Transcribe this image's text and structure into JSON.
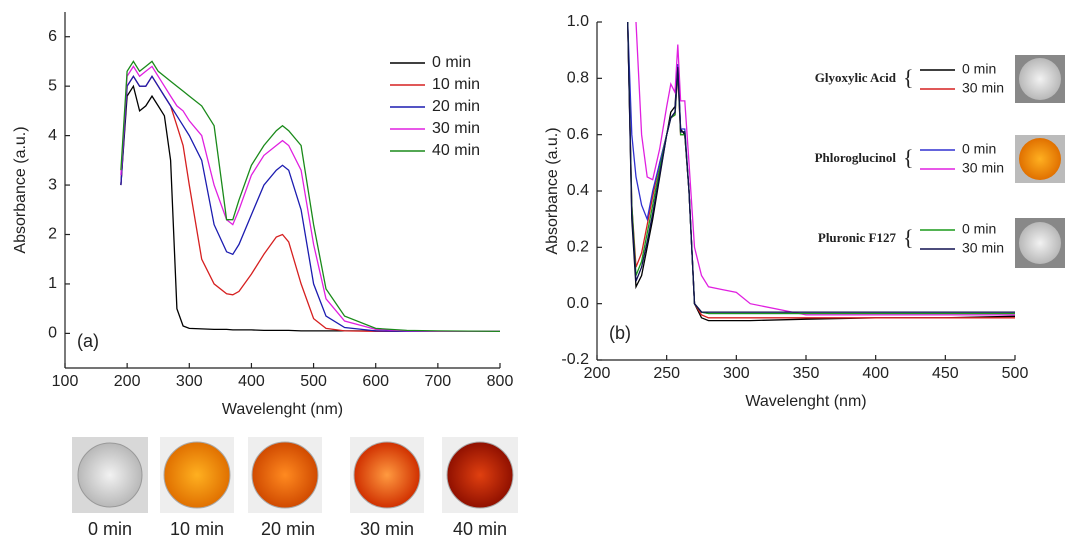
{
  "chart_data": [
    {
      "type": "line",
      "annotation": "(a)",
      "x_label": "Wavelenght (nm)",
      "y_label": "Absorbance (a.u.)",
      "xlim": [
        100,
        800
      ],
      "xticks": [
        100,
        200,
        300,
        400,
        500,
        600,
        700,
        800
      ],
      "ylim": [
        -0.7,
        6.5
      ],
      "yticks": [
        0,
        1,
        2,
        3,
        4,
        5,
        6
      ],
      "legend": "upper right",
      "x": [
        190,
        200,
        210,
        220,
        230,
        240,
        250,
        260,
        270,
        280,
        290,
        300,
        320,
        340,
        360,
        370,
        380,
        400,
        420,
        440,
        450,
        460,
        480,
        500,
        520,
        550,
        600,
        650,
        700,
        800
      ],
      "series": [
        {
          "name": "0 min",
          "color": "#000000",
          "values": [
            3.0,
            4.8,
            5.0,
            4.5,
            4.6,
            4.8,
            4.6,
            4.4,
            3.5,
            0.5,
            0.15,
            0.1,
            0.09,
            0.08,
            0.08,
            0.07,
            0.07,
            0.07,
            0.06,
            0.06,
            0.06,
            0.06,
            0.05,
            0.05,
            0.05,
            0.05,
            0.05,
            0.04,
            0.04,
            0.04
          ]
        },
        {
          "name": "10 min",
          "color": "#d62020",
          "values": [
            3.0,
            5.0,
            5.2,
            5.0,
            5.0,
            5.2,
            5.0,
            4.8,
            4.6,
            4.2,
            3.8,
            3.0,
            1.5,
            1.0,
            0.8,
            0.78,
            0.85,
            1.2,
            1.6,
            1.95,
            2.0,
            1.85,
            1.0,
            0.3,
            0.1,
            0.05,
            0.04,
            0.04,
            0.04,
            0.04
          ]
        },
        {
          "name": "20 min",
          "color": "#1c1cb0",
          "values": [
            3.0,
            5.0,
            5.2,
            5.0,
            5.0,
            5.2,
            5.0,
            4.8,
            4.6,
            4.4,
            4.2,
            4.0,
            3.5,
            2.2,
            1.65,
            1.6,
            1.8,
            2.4,
            3.0,
            3.3,
            3.4,
            3.3,
            2.5,
            1.0,
            0.35,
            0.12,
            0.05,
            0.04,
            0.04,
            0.04
          ]
        },
        {
          "name": "30 min",
          "color": "#e020e0",
          "values": [
            3.2,
            5.2,
            5.4,
            5.2,
            5.3,
            5.4,
            5.2,
            5.0,
            4.8,
            4.6,
            4.5,
            4.3,
            4.0,
            3.0,
            2.3,
            2.2,
            2.5,
            3.2,
            3.6,
            3.8,
            3.9,
            3.8,
            3.3,
            1.8,
            0.7,
            0.25,
            0.08,
            0.05,
            0.04,
            0.04
          ]
        },
        {
          "name": "40 min",
          "color": "#1a8a1a",
          "values": [
            3.3,
            5.3,
            5.5,
            5.3,
            5.4,
            5.5,
            5.3,
            5.2,
            5.1,
            5.0,
            4.9,
            4.8,
            4.6,
            4.2,
            2.3,
            2.3,
            2.7,
            3.4,
            3.8,
            4.1,
            4.2,
            4.1,
            3.8,
            2.2,
            0.9,
            0.35,
            0.1,
            0.06,
            0.05,
            0.04
          ]
        }
      ]
    },
    {
      "type": "line",
      "annotation": "(b)",
      "x_label": "Wavelenght (nm)",
      "y_label": "Absorbance (a.u.)",
      "xlim": [
        200,
        500
      ],
      "xticks": [
        200,
        250,
        300,
        350,
        400,
        450,
        500
      ],
      "ylim": [
        -0.2,
        1.0
      ],
      "yticks": [
        -0.2,
        {
          "value": 0,
          "label": "0.0"
        },
        0.2,
        0.4,
        0.6,
        0.8,
        {
          "value": 1,
          "label": "1.0"
        }
      ],
      "x": [
        222,
        225,
        228,
        232,
        236,
        240,
        245,
        250,
        253,
        256,
        258,
        260,
        263,
        266,
        270,
        275,
        280,
        290,
        300,
        310,
        350,
        400,
        450,
        500
      ],
      "groups": [
        {
          "label": "Glyoxylic Acid",
          "series": [
            {
              "name": "0 min",
              "color": "#000000",
              "values": [
                1.0,
                0.3,
                0.06,
                0.1,
                0.2,
                0.3,
                0.45,
                0.6,
                0.68,
                0.7,
                0.85,
                0.62,
                0.6,
                0.4,
                0.0,
                -0.05,
                -0.06,
                -0.06,
                -0.06,
                -0.06,
                -0.055,
                -0.05,
                -0.05,
                -0.045
              ]
            },
            {
              "name": "30 min",
              "color": "#d62020",
              "values": [
                1.0,
                0.35,
                0.13,
                0.18,
                0.28,
                0.38,
                0.5,
                0.6,
                0.66,
                0.67,
                0.82,
                0.6,
                0.6,
                0.4,
                0.0,
                -0.04,
                -0.05,
                -0.05,
                -0.05,
                -0.05,
                -0.05,
                -0.05,
                -0.05,
                -0.05
              ]
            }
          ]
        },
        {
          "label": "Phloroglucinol",
          "series": [
            {
              "name": "0 min",
              "color": "#3030d0",
              "values": [
                1.0,
                0.6,
                0.45,
                0.35,
                0.3,
                0.4,
                0.5,
                0.6,
                0.66,
                0.68,
                0.85,
                0.62,
                0.62,
                0.4,
                0.0,
                -0.03,
                -0.035,
                -0.035,
                -0.035,
                -0.035,
                -0.035,
                -0.035,
                -0.035,
                -0.035
              ]
            },
            {
              "name": "30 min",
              "color": "#e020e0",
              "values": [
                null,
                null,
                1.0,
                0.6,
                0.45,
                0.44,
                0.55,
                0.7,
                0.78,
                0.75,
                0.92,
                0.72,
                0.72,
                0.5,
                0.2,
                0.1,
                0.06,
                0.05,
                0.04,
                0.0,
                -0.04,
                -0.04,
                -0.04,
                -0.04
              ]
            }
          ]
        },
        {
          "label": "Pluronic F127",
          "series": [
            {
              "name": "0 min",
              "color": "#1a9a1a",
              "values": [
                1.0,
                0.35,
                0.1,
                0.15,
                0.25,
                0.35,
                0.48,
                0.6,
                0.66,
                0.67,
                0.83,
                0.6,
                0.6,
                0.4,
                0.0,
                -0.03,
                -0.035,
                -0.035,
                -0.035,
                -0.035,
                -0.035,
                -0.035,
                -0.035,
                -0.035
              ]
            },
            {
              "name": "30 min",
              "color": "#101050",
              "values": [
                1.0,
                0.32,
                0.08,
                0.13,
                0.22,
                0.32,
                0.46,
                0.6,
                0.66,
                0.68,
                0.84,
                0.61,
                0.61,
                0.4,
                0.0,
                -0.03,
                -0.03,
                -0.03,
                -0.03,
                -0.03,
                -0.03,
                -0.03,
                -0.03,
                -0.03
              ]
            }
          ]
        }
      ]
    }
  ],
  "photos": [
    "0 min",
    "10 min",
    "20 min",
    "30 min",
    "40 min"
  ]
}
